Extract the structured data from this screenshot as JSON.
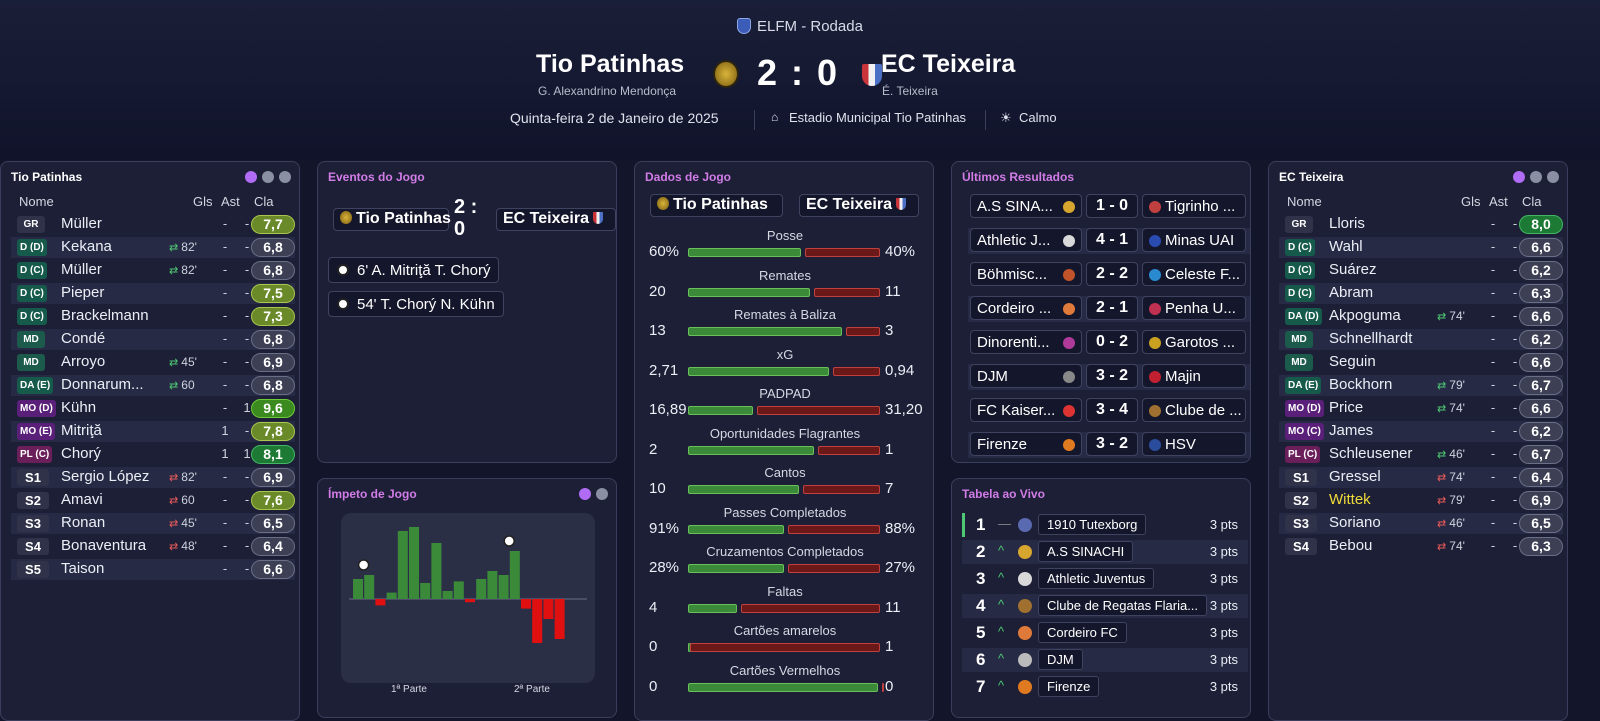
{
  "header": {
    "competition": "ELFM - Rodada",
    "home_team": "Tio Patinhas",
    "home_manager": "G. Alexandrino Mendonça",
    "away_team": "EC Teixeira",
    "away_manager": "É. Teixeira",
    "score": "2 : 0",
    "date": "Quinta-feira 2 de Janeiro de 2025",
    "stadium": "Estadio Municipal Tio Patinhas",
    "weather": "Calmo",
    "colors": {
      "accent": "#b06cf5",
      "home_crest": "#d9b43a",
      "away_crest": "#c9343a"
    }
  },
  "lineup_labels": {
    "name": "Nome",
    "goals": "Gls",
    "assists": "Ast",
    "rating": "Cla"
  },
  "home_lineup": {
    "title": "Tio Patinhas",
    "players": [
      {
        "pos": "GR",
        "name": "Müller",
        "sub": "",
        "gls": "-",
        "ast": "-",
        "rating": "7,7"
      },
      {
        "pos": "D (D)",
        "name": "Kekana",
        "sub": "82'",
        "gls": "-",
        "ast": "-",
        "rating": "6,8"
      },
      {
        "pos": "D (C)",
        "name": "Müller",
        "sub": "82'",
        "gls": "-",
        "ast": "-",
        "rating": "6,8"
      },
      {
        "pos": "D (C)",
        "name": "Pieper",
        "sub": "",
        "gls": "-",
        "ast": "-",
        "rating": "7,5"
      },
      {
        "pos": "D (C)",
        "name": "Brackelmann",
        "sub": "",
        "gls": "-",
        "ast": "-",
        "rating": "7,3"
      },
      {
        "pos": "MD",
        "name": "Condé",
        "sub": "",
        "gls": "-",
        "ast": "-",
        "rating": "6,8"
      },
      {
        "pos": "MD",
        "name": "Arroyo",
        "sub": "45'",
        "gls": "-",
        "ast": "-",
        "rating": "6,9"
      },
      {
        "pos": "DA (E)",
        "name": "Donnarum...",
        "sub": "60",
        "gls": "-",
        "ast": "-",
        "rating": "6,8"
      },
      {
        "pos": "MO (D)",
        "name": "Kühn",
        "sub": "",
        "gls": "-",
        "ast": "1",
        "rating": "9,6"
      },
      {
        "pos": "MO (E)",
        "name": "Mitriţă",
        "sub": "",
        "gls": "1",
        "ast": "-",
        "rating": "7,8"
      },
      {
        "pos": "PL (C)",
        "name": "Chorý",
        "sub": "",
        "gls": "1",
        "ast": "1",
        "rating": "8,1"
      },
      {
        "pos": "S1",
        "name": "Sergio López",
        "sub": "82'",
        "gls": "-",
        "ast": "-",
        "rating": "6,9"
      },
      {
        "pos": "S2",
        "name": "Amavi",
        "sub": "60",
        "gls": "-",
        "ast": "-",
        "rating": "7,6"
      },
      {
        "pos": "S3",
        "name": "Ronan",
        "sub": "45'",
        "gls": "-",
        "ast": "-",
        "rating": "6,5"
      },
      {
        "pos": "S4",
        "name": "Bonaventura",
        "sub": "48'",
        "gls": "-",
        "ast": "-",
        "rating": "6,4"
      },
      {
        "pos": "S5",
        "name": "Taison",
        "sub": "",
        "gls": "-",
        "ast": "-",
        "rating": "6,6"
      }
    ]
  },
  "away_lineup": {
    "title": "EC Teixeira",
    "players": [
      {
        "pos": "GR",
        "name": "Lloris",
        "sub": "",
        "gls": "-",
        "ast": "-",
        "rating": "8,0"
      },
      {
        "pos": "D (C)",
        "name": "Wahl",
        "sub": "",
        "gls": "-",
        "ast": "-",
        "rating": "6,6"
      },
      {
        "pos": "D (C)",
        "name": "Suárez",
        "sub": "",
        "gls": "-",
        "ast": "-",
        "rating": "6,2"
      },
      {
        "pos": "D (C)",
        "name": "Abram",
        "sub": "",
        "gls": "-",
        "ast": "-",
        "rating": "6,3"
      },
      {
        "pos": "DA (D)",
        "name": "Akpoguma",
        "sub": "74'",
        "gls": "-",
        "ast": "-",
        "rating": "6,6"
      },
      {
        "pos": "MD",
        "name": "Schnellhardt",
        "sub": "",
        "gls": "-",
        "ast": "-",
        "rating": "6,2"
      },
      {
        "pos": "MD",
        "name": "Seguin",
        "sub": "",
        "gls": "-",
        "ast": "-",
        "rating": "6,6"
      },
      {
        "pos": "DA (E)",
        "name": "Bockhorn",
        "sub": "79'",
        "gls": "-",
        "ast": "-",
        "rating": "6,7"
      },
      {
        "pos": "MO (D)",
        "name": "Price",
        "sub": "74'",
        "gls": "-",
        "ast": "-",
        "rating": "6,6"
      },
      {
        "pos": "MO (C)",
        "name": "James",
        "sub": "",
        "gls": "-",
        "ast": "-",
        "rating": "6,2"
      },
      {
        "pos": "PL (C)",
        "name": "Schleusener",
        "sub": "46'",
        "gls": "-",
        "ast": "-",
        "rating": "6,7"
      },
      {
        "pos": "S1",
        "name": "Gressel",
        "sub": "74'",
        "gls": "-",
        "ast": "-",
        "rating": "6,4"
      },
      {
        "pos": "S2",
        "name": "Wittek",
        "sub": "79'",
        "gls": "-",
        "ast": "-",
        "rating": "6,9"
      },
      {
        "pos": "S3",
        "name": "Soriano",
        "sub": "46'",
        "gls": "-",
        "ast": "-",
        "rating": "6,5"
      },
      {
        "pos": "S4",
        "name": "Bebou",
        "sub": "74'",
        "gls": "-",
        "ast": "-",
        "rating": "6,3"
      }
    ]
  },
  "events": {
    "title": "Eventos do Jogo",
    "home": "Tio Patinhas",
    "score_line1": "2 :",
    "score_line2": "0",
    "away": "EC Teixeira",
    "items": [
      {
        "text": "6' A. Mitriţă T. Chorý"
      },
      {
        "text": "54' T. Chorý N. Kühn"
      }
    ]
  },
  "momentum": {
    "title": "Ímpeto de Jogo",
    "label_first": "1ª Parte",
    "label_second": "2ª Parte",
    "values": [
      0.25,
      0.3,
      -0.08,
      0.08,
      0.85,
      0.9,
      0.2,
      0.7,
      0.1,
      0.22,
      -0.04,
      0.25,
      0.35,
      0.3,
      0.6,
      -0.12,
      -0.55,
      -0.25,
      -0.5
    ]
  },
  "stats": {
    "title": "Dados de Jogo",
    "home": "Tio Patinhas",
    "away": "EC Teixeira",
    "rows": [
      {
        "label": "Posse",
        "home": "60%",
        "away": "40%",
        "h": 60,
        "a": 40
      },
      {
        "label": "Remates",
        "home": "20",
        "away": "11",
        "h": 20,
        "a": 11
      },
      {
        "label": "Remates à Baliza",
        "home": "13",
        "away": "3",
        "h": 13,
        "a": 3
      },
      {
        "label": "xG",
        "home": "2,71",
        "away": "0,94",
        "h": 2.71,
        "a": 0.94
      },
      {
        "label": "PADPAD",
        "home": "16,89",
        "away": "31,20",
        "h": 16.89,
        "a": 31.2
      },
      {
        "label": "Oportunidades Flagrantes",
        "home": "2",
        "away": "1",
        "h": 2,
        "a": 1
      },
      {
        "label": "Cantos",
        "home": "10",
        "away": "7",
        "h": 10,
        "a": 7
      },
      {
        "label": "Passes Completados",
        "home": "91%",
        "away": "88%",
        "h": 91,
        "a": 88
      },
      {
        "label": "Cruzamentos Completados",
        "home": "28%",
        "away": "27%",
        "h": 28,
        "a": 27
      },
      {
        "label": "Faltas",
        "home": "4",
        "away": "11",
        "h": 4,
        "a": 11
      },
      {
        "label": "Cartões amarelos",
        "home": "0",
        "away": "1",
        "h": 0,
        "a": 1
      },
      {
        "label": "Cartões Vermelhos",
        "home": "0",
        "away": "0",
        "h": 0,
        "a": 0
      }
    ]
  },
  "results": {
    "title": "Últimos Resultados",
    "rows": [
      {
        "home": "A.S SINA...",
        "score": "1 - 0",
        "away": "Tigrinho ..."
      },
      {
        "home": "Athletic J...",
        "score": "4 - 1",
        "away": "Minas UAI"
      },
      {
        "home": "Böhmisc...",
        "score": "2 - 2",
        "away": "Celeste F..."
      },
      {
        "home": "Cordeiro ...",
        "score": "2 - 1",
        "away": "Penha U..."
      },
      {
        "home": "Dinorenti...",
        "score": "0 - 2",
        "away": "Garotos ..."
      },
      {
        "home": "DJM",
        "score": "3 - 2",
        "away": "Majin"
      },
      {
        "home": "FC Kaiser...",
        "score": "3 - 4",
        "away": "Clube de ..."
      },
      {
        "home": "Firenze",
        "score": "3 - 2",
        "away": "HSV"
      }
    ]
  },
  "table": {
    "title": "Tabela ao Vivo",
    "rows": [
      {
        "pos": "1",
        "trend": "—",
        "team": "1910 Tutexborg",
        "pts": "3 pts"
      },
      {
        "pos": "2",
        "trend": "^",
        "team": "A.S SINACHI",
        "pts": "3 pts"
      },
      {
        "pos": "3",
        "trend": "^",
        "team": "Athletic Juventus",
        "pts": "3 pts"
      },
      {
        "pos": "4",
        "trend": "^",
        "team": "Clube de Regatas Flaria...",
        "pts": "3 pts"
      },
      {
        "pos": "5",
        "trend": "^",
        "team": "Cordeiro FC",
        "pts": "3 pts"
      },
      {
        "pos": "6",
        "trend": "^",
        "team": "DJM",
        "pts": "3 pts"
      },
      {
        "pos": "7",
        "trend": "^",
        "team": "Firenze",
        "pts": "3 pts"
      }
    ]
  }
}
